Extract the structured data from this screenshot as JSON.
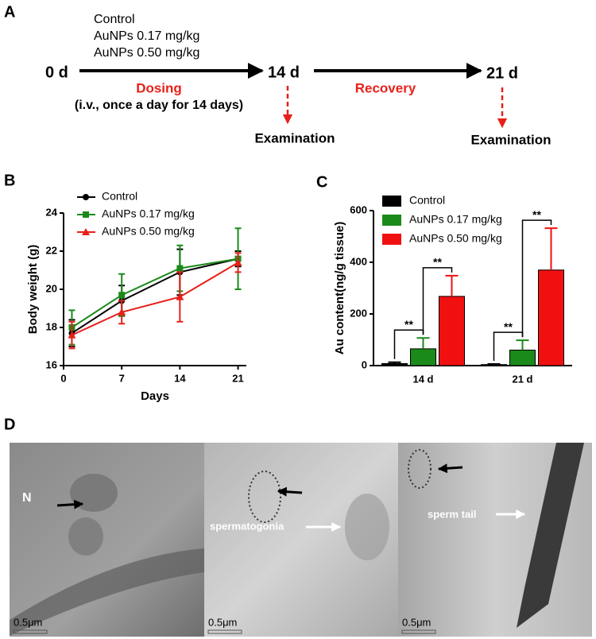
{
  "panel_a": {
    "label": "A",
    "groups": [
      "Control",
      "AuNPs 0.17 mg/kg",
      "AuNPs 0.50 mg/kg"
    ],
    "timepoints": [
      "0 d",
      "14 d",
      "21 d"
    ],
    "dosing": "Dosing",
    "dosing_note": "(i.v., once a day for 14 days)",
    "recovery": "Recovery",
    "examinations": [
      "Examination",
      "Examination"
    ]
  },
  "chart_data": [
    {
      "type": "line",
      "panel_label": "B",
      "x_label": "Days",
      "y_label": "Body weight (g)",
      "x": [
        1,
        7,
        14,
        21
      ],
      "xlim": [
        0,
        22
      ],
      "xticks": [
        0,
        7,
        14,
        21
      ],
      "ylim": [
        16,
        24
      ],
      "yticks": [
        16,
        18,
        20,
        22,
        24
      ],
      "legend": "upper left",
      "series": [
        {
          "name": "Control",
          "color": "#000000",
          "marker": "circle",
          "values": [
            17.7,
            19.4,
            20.9,
            21.6
          ],
          "errors": [
            0.7,
            0.8,
            1.2,
            0.4
          ]
        },
        {
          "name": "AuNPs 0.17 mg/kg",
          "color": "#1a8a1a",
          "marker": "square",
          "values": [
            18.0,
            19.7,
            21.1,
            21.6
          ],
          "errors": [
            0.9,
            1.1,
            1.2,
            1.6
          ]
        },
        {
          "name": "AuNPs 0.50 mg/kg",
          "color": "#e8201a",
          "marker": "triangle",
          "values": [
            17.6,
            18.8,
            19.6,
            21.4
          ],
          "errors": [
            0.7,
            0.6,
            1.3,
            0.5
          ]
        }
      ]
    },
    {
      "type": "bar",
      "panel_label": "C",
      "y_label": "Au content(ng/g tissue)",
      "categories": [
        "14 d",
        "21 d"
      ],
      "ylim": [
        0,
        600
      ],
      "yticks": [
        0,
        200,
        400,
        600
      ],
      "legend": "upper left",
      "series": [
        {
          "name": "Control",
          "color": "#000000",
          "values": [
            8,
            4
          ],
          "errors": [
            5,
            2
          ]
        },
        {
          "name": "AuNPs 0.17 mg/kg",
          "color": "#1a8a1a",
          "values": [
            65,
            60
          ],
          "errors": [
            42,
            38
          ]
        },
        {
          "name": "AuNPs 0.50 mg/kg",
          "color": "#f01010",
          "values": [
            268,
            370
          ],
          "errors": [
            80,
            162
          ]
        }
      ],
      "annotations": [
        "**",
        "**",
        "**",
        "**"
      ]
    }
  ],
  "panel_d": {
    "label": "D",
    "nucleus_label": "N",
    "cell_labels": [
      "spermatogonia",
      "sperm  tail"
    ],
    "scale_bars": [
      "0.5μm",
      "0.5μm",
      "0.5μm"
    ]
  }
}
